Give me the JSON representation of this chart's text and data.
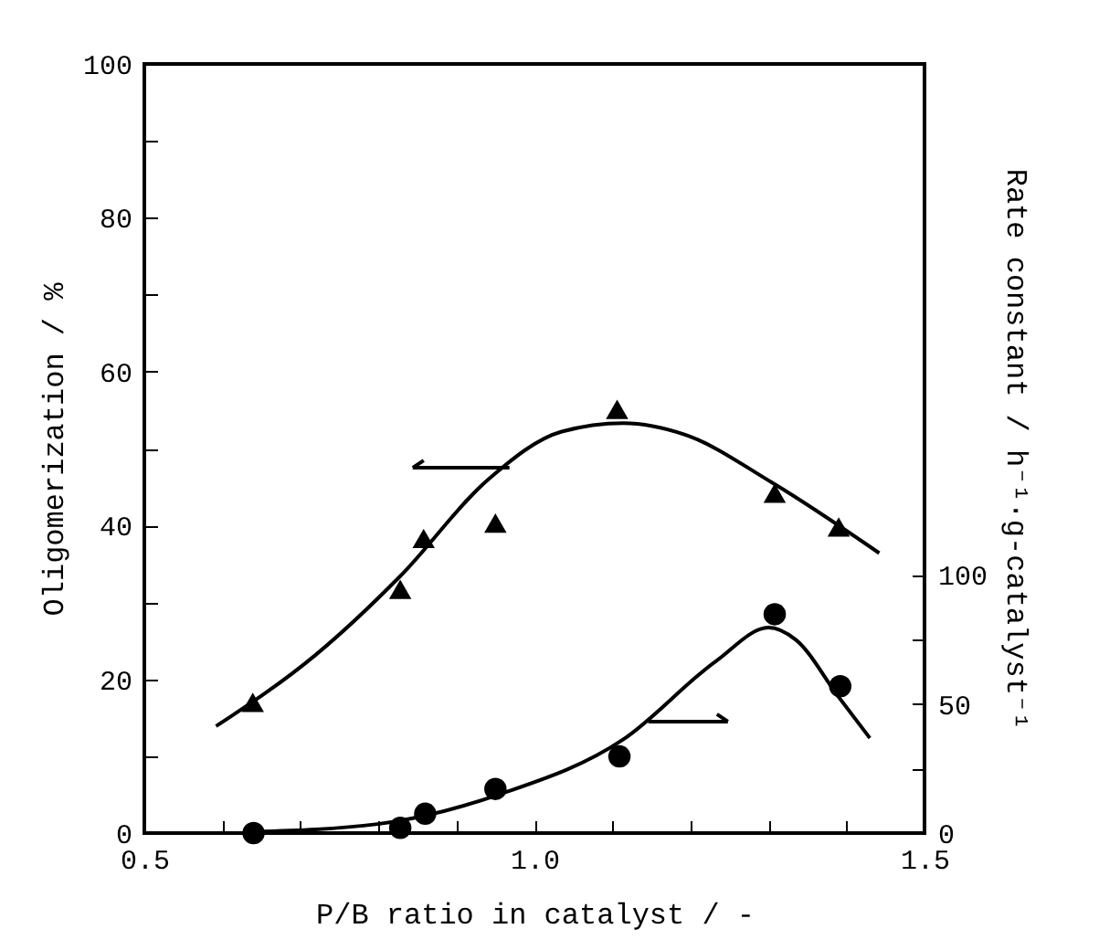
{
  "chart_data": {
    "type": "scatter",
    "xlabel": "P/B ratio in catalyst / -",
    "ylabel": "Oligomerization / %",
    "y2label": "Rate constant / h⁻¹·g-catalyst⁻¹",
    "xlim": [
      0.5,
      1.5
    ],
    "xticks": [
      0.5,
      {
        "value": 0.6,
        "label": null
      },
      {
        "value": 0.7,
        "label": null
      },
      {
        "value": 0.8,
        "label": null
      },
      {
        "value": 0.9,
        "label": null
      },
      {
        "value": 1.0,
        "label": "1.0"
      },
      {
        "value": 1.1,
        "label": null
      },
      {
        "value": 1.2,
        "label": null
      },
      {
        "value": 1.3,
        "label": null
      },
      {
        "value": 1.4,
        "label": null
      },
      1.5
    ],
    "ylim": [
      0,
      100
    ],
    "yticks": [
      0,
      {
        "value": 10,
        "label": null
      },
      20,
      {
        "value": 30,
        "label": null
      },
      40,
      {
        "value": 50,
        "label": null
      },
      60,
      {
        "value": 70,
        "label": null
      },
      80,
      {
        "value": 90,
        "label": null
      },
      100
    ],
    "y2lim": [
      0,
      298
    ],
    "y2ticks": [
      0,
      {
        "value": 25,
        "label": null
      },
      50,
      {
        "value": 75,
        "label": null
      },
      100
    ],
    "grid": false,
    "series": [
      {
        "marker": "triangle",
        "color": "#000000",
        "x": [
          0.639,
          0.828,
          0.858,
          0.95,
          1.106,
          1.308,
          1.39
        ],
        "values": [
          17.0,
          31.7,
          38.3,
          40.3,
          55.1,
          44.2,
          39.8
        ]
      },
      {
        "type": "line",
        "marker": "none",
        "color": "#000000",
        "x": [
          0.592,
          0.72,
          0.828,
          0.941,
          1.035,
          1.114,
          1.193,
          1.304,
          1.442
        ],
        "values": [
          13.9,
          23.2,
          33.4,
          46.0,
          52.2,
          53.3,
          51.8,
          45.6,
          36.4
        ]
      },
      {
        "marker": "circle",
        "axis": "y2",
        "color": "#000000",
        "x": [
          0.64,
          0.828,
          0.86,
          0.95,
          1.109,
          1.308,
          1.392
        ],
        "values": [
          0,
          2,
          7.5,
          17.1,
          29.7,
          84.8,
          56.9
        ]
      },
      {
        "type": "line",
        "marker": "none",
        "axis": "y2",
        "color": "#000000",
        "x": [
          0.64,
          0.799,
          0.957,
          1.114,
          1.233,
          1.3,
          1.335,
          1.39,
          1.43
        ],
        "values": [
          0.5,
          3.5,
          15.2,
          36.3,
          66.7,
          79.6,
          74.9,
          52.7,
          36.8
        ]
      }
    ]
  }
}
